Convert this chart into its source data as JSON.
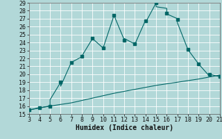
{
  "title": "",
  "xlabel": "Humidex (Indice chaleur)",
  "background_color": "#b2d8d8",
  "line_color": "#006666",
  "grid_color": "#ffffff",
  "x_main": [
    3,
    4,
    5,
    5,
    6,
    6,
    7,
    8,
    8,
    9,
    10,
    11,
    11,
    12,
    12,
    13,
    14,
    14,
    15,
    15,
    16,
    16,
    17,
    17,
    18,
    19,
    20,
    20,
    21
  ],
  "y_main": [
    15.5,
    15.8,
    16.0,
    16.8,
    19.0,
    18.5,
    21.5,
    22.2,
    22.3,
    24.5,
    23.3,
    27.3,
    27.5,
    24.3,
    24.5,
    23.8,
    26.8,
    26.5,
    29.0,
    28.5,
    28.3,
    27.6,
    27.0,
    26.5,
    23.1,
    21.3,
    19.8,
    20.0,
    19.7
  ],
  "x_line2": [
    3,
    5,
    7,
    9,
    11,
    13,
    15,
    17,
    19,
    21
  ],
  "y_line2": [
    15.5,
    16.0,
    16.4,
    17.0,
    17.6,
    18.1,
    18.6,
    19.0,
    19.4,
    19.9
  ],
  "x_markers_main": [
    3,
    4,
    5,
    6,
    7,
    8,
    9,
    10,
    11,
    12,
    13,
    14,
    15,
    16,
    17,
    18,
    19,
    20,
    21
  ],
  "y_markers_main": [
    15.5,
    15.8,
    16.0,
    19.0,
    21.5,
    22.3,
    24.5,
    23.3,
    27.4,
    24.3,
    23.8,
    26.7,
    29.0,
    27.7,
    26.9,
    23.1,
    21.3,
    20.0,
    19.7
  ],
  "xlim": [
    3,
    21
  ],
  "ylim": [
    15,
    29
  ],
  "xticks": [
    3,
    4,
    5,
    6,
    7,
    8,
    9,
    10,
    11,
    12,
    13,
    14,
    15,
    16,
    17,
    18,
    19,
    20,
    21
  ],
  "yticks": [
    15,
    16,
    17,
    18,
    19,
    20,
    21,
    22,
    23,
    24,
    25,
    26,
    27,
    28,
    29
  ],
  "tick_fontsize": 6,
  "xlabel_fontsize": 7
}
